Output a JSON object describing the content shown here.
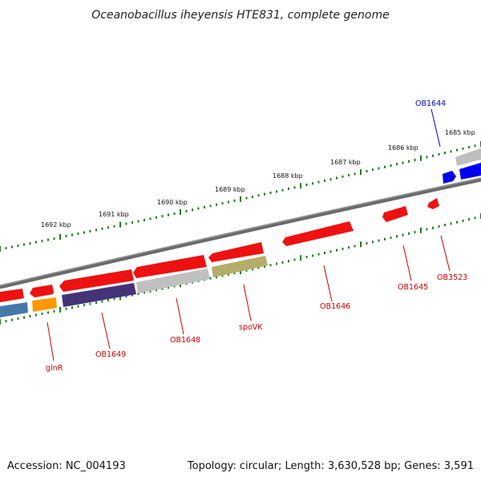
{
  "title": "Oceanobacillus iheyensis HTE831, complete genome",
  "footer": {
    "accession": "Accession: NC_004193",
    "summary": "Topology: circular; Length: 3,630,528 bp; Genes: 3,591"
  },
  "scale_labels": [
    "1692 kbp",
    "1691 kbp",
    "1690 kbp",
    "1689 kbp",
    "1688 kbp",
    "1687 kbp",
    "1686 kbp",
    "1685 kbp"
  ],
  "genes": [
    {
      "label": "glnR",
      "color": "#cc0000"
    },
    {
      "label": "OB1649",
      "color": "#cc0000"
    },
    {
      "label": "OB1648",
      "color": "#cc0000"
    },
    {
      "label": "spoVK",
      "color": "#cc0000"
    },
    {
      "label": "OB1646",
      "color": "#cc0000"
    },
    {
      "label": "OB1645",
      "color": "#cc0000"
    },
    {
      "label": "OB3523",
      "color": "#cc0000"
    },
    {
      "label": "OB1644",
      "color": "#0000cc"
    }
  ],
  "colors": {
    "forward_gene": "#ee1111",
    "backbone": "#7f7f7f",
    "tick": "#1f7a1f",
    "reverse_blue": "#0000ee",
    "steel_blue": "#4477aa",
    "orange": "#ff9900",
    "navy_purple": "#443377",
    "light_gray": "#c0c0c0",
    "olive": "#b5ad6a"
  }
}
